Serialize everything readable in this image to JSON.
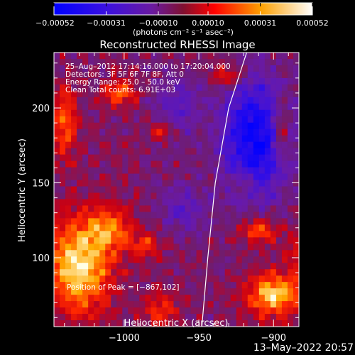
{
  "chart_data": {
    "type": "heatmap",
    "title": "Reconstructed RHESSI Image",
    "xlabel": "Heliocentric X (arcsec)",
    "ylabel": "Heliocentric Y (arcsec)",
    "xlim": [
      -1047,
      -883
    ],
    "ylim": [
      54,
      237
    ],
    "x_ticks": [
      -1000,
      -950,
      -900
    ],
    "y_ticks": [
      100,
      150,
      200
    ],
    "x_tick_labels": [
      "−1000",
      "−950",
      "−900"
    ],
    "y_tick_labels": [
      "100",
      "150",
      "200"
    ],
    "colorbar": {
      "min": -0.00052,
      "max": 0.00052,
      "ticks": [
        -0.00052,
        -0.00031,
        -0.0001,
        0.0001,
        0.00031,
        0.00052
      ],
      "tick_labels": [
        "−0.00052",
        "−0.00031",
        "−0.00010",
        "0.00010",
        "0.00031",
        "0.00052"
      ],
      "units_label": "(photons cm⁻² s⁻¹ asec⁻²)",
      "colors": [
        "#0000ff",
        "#5a18b4",
        "#7a1f6a",
        "#ff0000",
        "#ffa500",
        "#ffffff"
      ]
    },
    "annotations": [
      "25–Aug–2012 17:14:16.000 to 17:20:04.000",
      "Detectors: 3F 5F 6F 7F 8F, Att 0",
      "Energy Range: 25.0 – 50.0 keV",
      "Clean    Total counts: 6.91E+03"
    ],
    "peak_label": "Position of Peak = [−867,102]",
    "peak": [
      -867,
      102
    ],
    "limb_curve": [
      [
        -948,
        54
      ],
      [
        -944,
        100
      ],
      [
        -939,
        150
      ],
      [
        -930,
        200
      ],
      [
        -918,
        237
      ]
    ],
    "emission_blobs": [
      {
        "x": -1030,
        "y": 95,
        "sx": 15,
        "sy": 22,
        "amp": 0.95
      },
      {
        "x": -1008,
        "y": 120,
        "sx": 10,
        "sy": 10,
        "amp": 0.55
      },
      {
        "x": -985,
        "y": 108,
        "sx": 7,
        "sy": 6,
        "amp": 0.45
      },
      {
        "x": -1040,
        "y": 190,
        "sx": 6,
        "sy": 16,
        "amp": 0.6
      },
      {
        "x": -1003,
        "y": 210,
        "sx": 8,
        "sy": 6,
        "amp": 0.55
      },
      {
        "x": -975,
        "y": 185,
        "sx": 6,
        "sy": 5,
        "amp": 0.45
      },
      {
        "x": -867,
        "y": 102,
        "sx": 12,
        "sy": 14,
        "amp": 1.0
      },
      {
        "x": -900,
        "y": 75,
        "sx": 12,
        "sy": 10,
        "amp": 0.85
      },
      {
        "x": -910,
        "y": 118,
        "sx": 8,
        "sy": 6,
        "amp": 0.6
      },
      {
        "x": -930,
        "y": 222,
        "sx": 8,
        "sy": 5,
        "amp": 0.45
      },
      {
        "x": -895,
        "y": 185,
        "sx": 4,
        "sy": 14,
        "amp": 0.6
      },
      {
        "x": -975,
        "y": 65,
        "sx": 8,
        "sy": 7,
        "amp": 0.45
      },
      {
        "x": -920,
        "y": 150,
        "sx": 5,
        "sy": 5,
        "amp": 0.35
      }
    ],
    "negative_blobs": [
      {
        "x": -912,
        "y": 180,
        "sx": 16,
        "sy": 28,
        "amp": 0.95
      },
      {
        "x": -965,
        "y": 200,
        "sx": 12,
        "sy": 14,
        "amp": 0.4
      },
      {
        "x": -960,
        "y": 132,
        "sx": 12,
        "sy": 12,
        "amp": 0.35
      }
    ]
  },
  "footer": {
    "date": "13–May–2022 20:57"
  }
}
